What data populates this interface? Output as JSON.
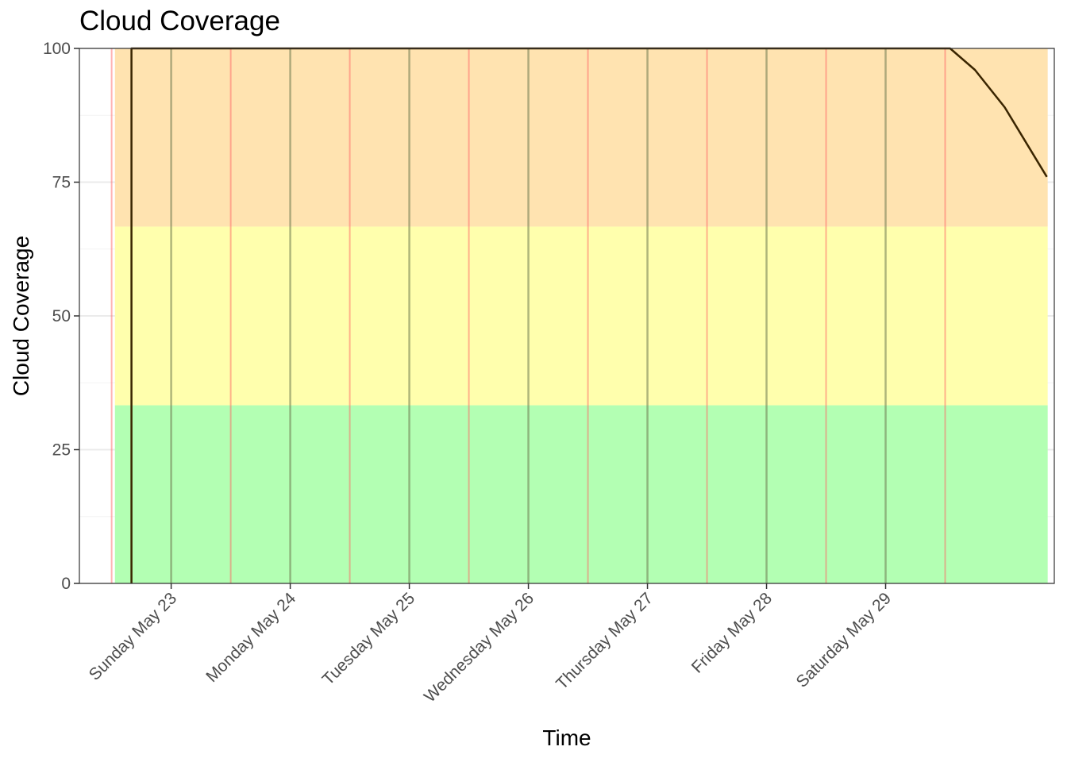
{
  "chart_data": {
    "type": "line",
    "title": "Cloud Coverage",
    "xlabel": "Time",
    "ylabel": "Cloud Coverage",
    "ylim": [
      0,
      100
    ],
    "y_ticks": [
      0,
      25,
      50,
      75,
      100
    ],
    "x_range": [
      "2021-05-22T05:30",
      "2021-05-30T10:00"
    ],
    "x_ticks": [
      {
        "date": "2021-05-23",
        "label": "Sunday May 23"
      },
      {
        "date": "2021-05-24",
        "label": "Monday May 24"
      },
      {
        "date": "2021-05-25",
        "label": "Tuesday May 25"
      },
      {
        "date": "2021-05-26",
        "label": "Wednesday May 26"
      },
      {
        "date": "2021-05-27",
        "label": "Thursday May 27"
      },
      {
        "date": "2021-05-28",
        "label": "Friday May 28"
      },
      {
        "date": "2021-05-29",
        "label": "Saturday May 29"
      }
    ],
    "grid": true,
    "background_bands": [
      {
        "ymin": 0,
        "ymax": 33.3,
        "color": "#b3ffb3"
      },
      {
        "ymin": 33.3,
        "ymax": 66.7,
        "color": "#ffffad"
      },
      {
        "ymin": 66.7,
        "ymax": 100,
        "color": "#ffe3b0"
      }
    ],
    "bands_x_range": [
      "2021-05-22T12:40",
      "2021-05-30T08:40"
    ],
    "day_lines": {
      "sunrise": [
        "2021-05-23T00:00",
        "2021-05-24T00:00",
        "2021-05-25T00:00",
        "2021-05-26T00:00",
        "2021-05-27T00:00",
        "2021-05-28T00:00",
        "2021-05-29T00:00"
      ],
      "sunset": [
        "2021-05-22T12:00",
        "2021-05-23T12:00",
        "2021-05-24T12:00",
        "2021-05-25T12:00",
        "2021-05-26T12:00",
        "2021-05-27T12:00",
        "2021-05-28T12:00",
        "2021-05-29T12:00"
      ],
      "sunrise_color": "#6e7a50",
      "sunset_color": "#ff6666"
    },
    "series": [
      {
        "color": "#3a2500",
        "points": [
          {
            "x": "2021-05-22T16:00",
            "y": 0
          },
          {
            "x": "2021-05-22T16:00",
            "y": 100
          },
          {
            "x": "2021-05-29T13:00",
            "y": 100
          },
          {
            "x": "2021-05-29T18:00",
            "y": 96
          },
          {
            "x": "2021-05-30T00:00",
            "y": 89
          },
          {
            "x": "2021-05-30T08:30",
            "y": 76
          }
        ]
      }
    ]
  }
}
